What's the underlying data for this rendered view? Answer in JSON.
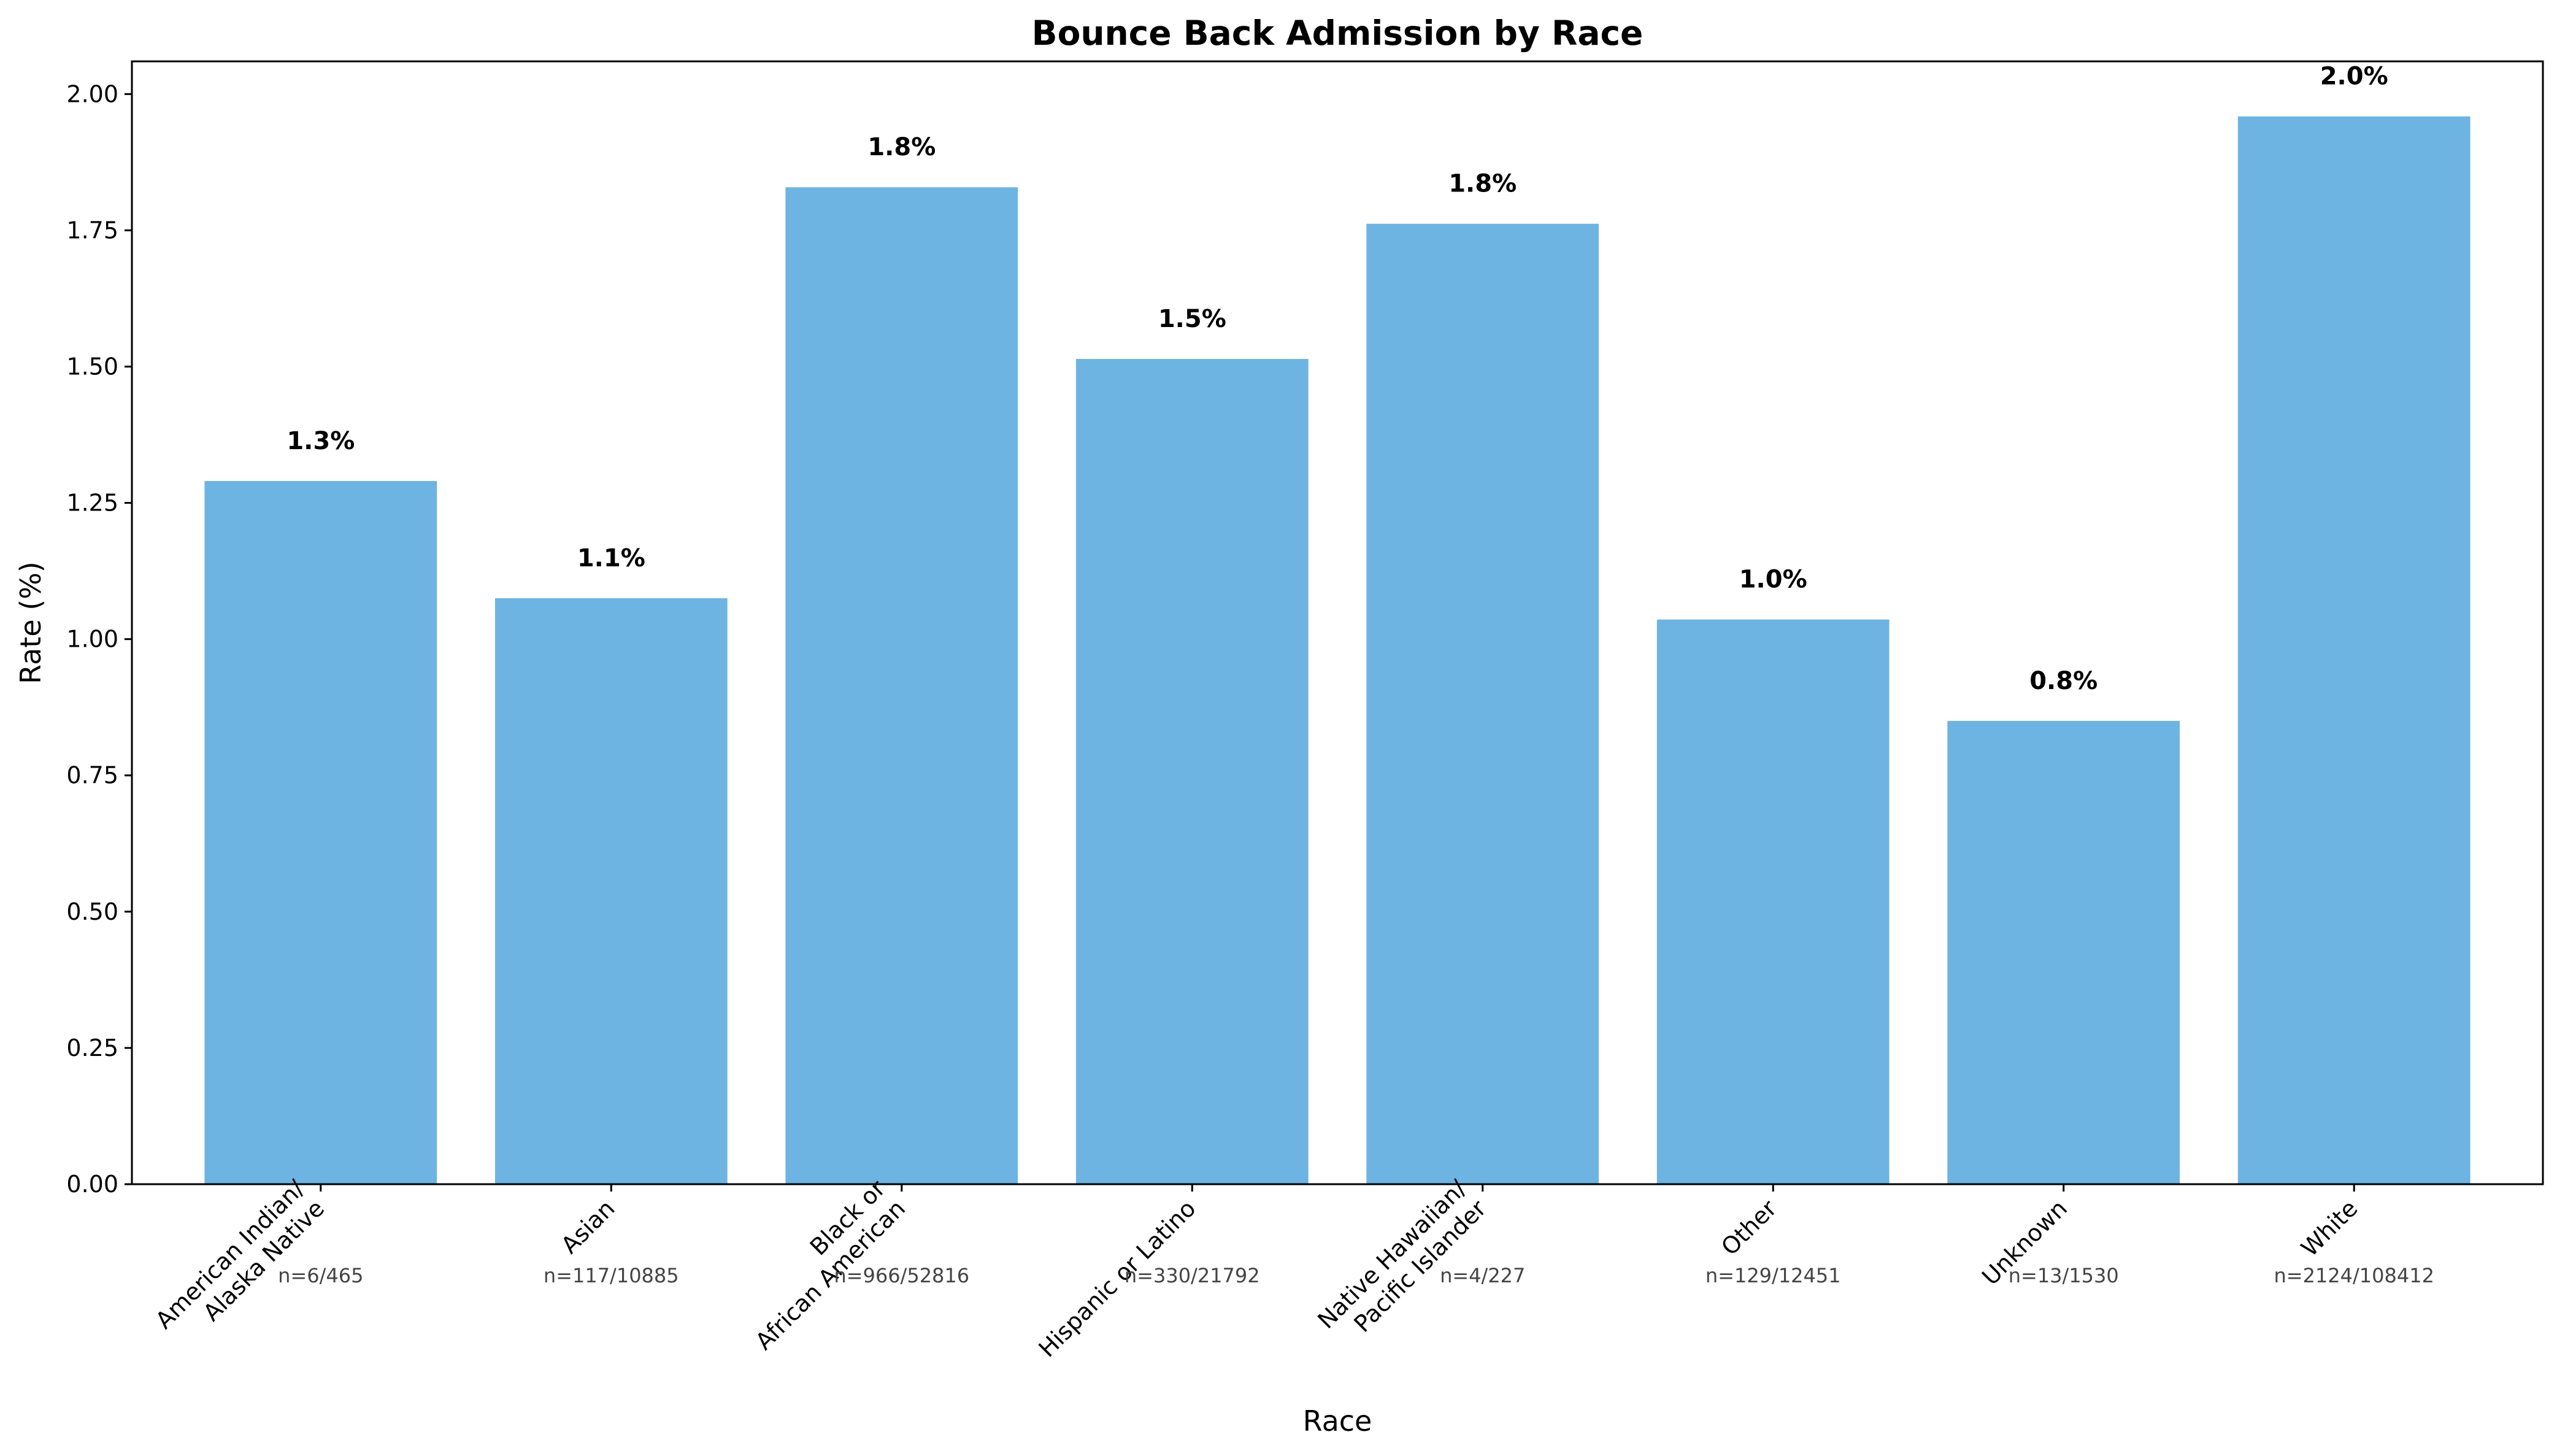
{
  "chart_data": {
    "type": "bar",
    "title": "Bounce Back Admission by Race",
    "xlabel": "Race",
    "ylabel": "Rate (%)",
    "ylim": [
      0,
      2.06
    ],
    "yticks": [
      "0.00",
      "0.25",
      "0.50",
      "0.75",
      "1.00",
      "1.25",
      "1.50",
      "1.75",
      "2.00"
    ],
    "bar_color": "#6eb4e2",
    "grid": false,
    "categories": [
      [
        "American Indian/",
        "Alaska Native"
      ],
      [
        "Asian"
      ],
      [
        "Black or",
        "African American"
      ],
      [
        "Hispanic or Latino"
      ],
      [
        "Native Hawaiian/",
        "Pacific Islander"
      ],
      [
        "Other"
      ],
      [
        "Unknown"
      ],
      [
        "White"
      ]
    ],
    "values": [
      1.29,
      1.075,
      1.829,
      1.514,
      1.762,
      1.036,
      0.85,
      1.959
    ],
    "data_labels": [
      "1.3%",
      "1.1%",
      "1.8%",
      "1.5%",
      "1.8%",
      "1.0%",
      "0.8%",
      "2.0%"
    ],
    "counts": [
      "n=6/465",
      "n=117/10885",
      "n=966/52816",
      "n=330/21792",
      "n=4/227",
      "n=129/12451",
      "n=13/1530",
      "n=2124/108412"
    ]
  }
}
